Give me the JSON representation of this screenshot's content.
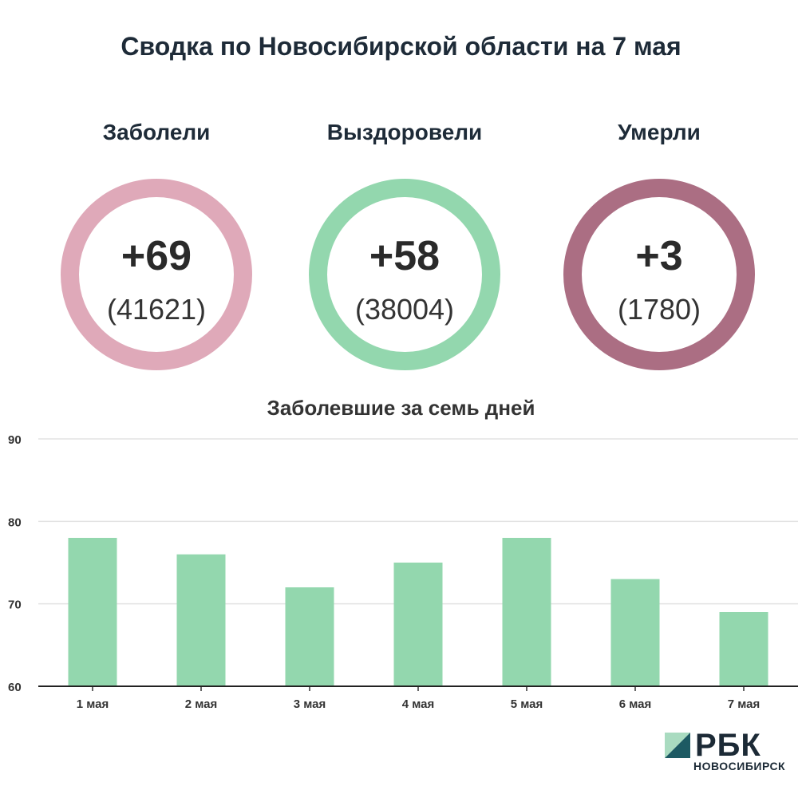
{
  "header": {
    "title": "Сводка по Новосибирской области на 7 мая"
  },
  "stats": [
    {
      "label": "Заболели",
      "delta": "+69",
      "total": "(41621)",
      "color": "#dfa9b9"
    },
    {
      "label": "Выздоровели",
      "delta": "+58",
      "total": "(38004)",
      "color": "#93d7ae"
    },
    {
      "label": "Умерли",
      "delta": "+3",
      "total": "(1780)",
      "color": "#ab6e83"
    }
  ],
  "chart_data": {
    "type": "bar",
    "title": "Заболевшие за семь дней",
    "categories": [
      "1 мая",
      "2 мая",
      "3 мая",
      "4 мая",
      "5 мая",
      "6 мая",
      "7 мая"
    ],
    "values": [
      78,
      76,
      72,
      75,
      78,
      73,
      69
    ],
    "ylim": [
      60,
      90
    ],
    "yticks": [
      60,
      70,
      80,
      90
    ],
    "grid": true,
    "bar_color": "#93d7ae"
  },
  "brand": {
    "logo_text": "РБК",
    "logo_sub": "НОВОСИБИРСК",
    "colors": [
      "#a9dbc0",
      "#1d5a63"
    ]
  }
}
